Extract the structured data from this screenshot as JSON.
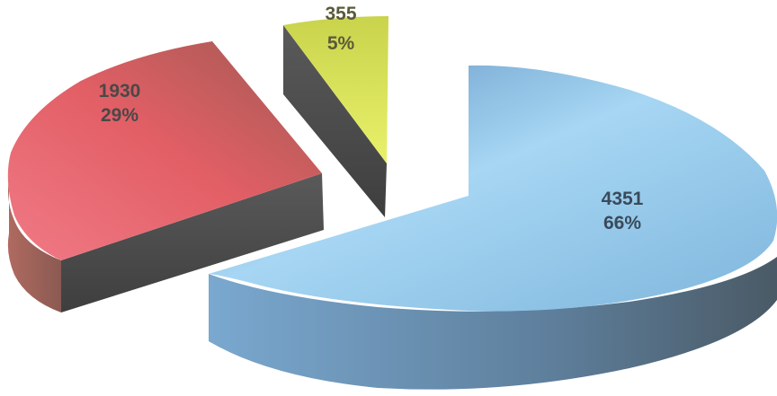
{
  "chart_data": {
    "type": "pie",
    "style": "3d-exploded",
    "title": "",
    "legend": "none",
    "slices": [
      {
        "value": 4351,
        "label": "4351",
        "percent": "66%",
        "color": "#8fc3e6"
      },
      {
        "value": 1930,
        "label": "1930",
        "percent": "29%",
        "color": "#e8626b"
      },
      {
        "value": 355,
        "label": "355",
        "percent": "5%",
        "color": "#d9e45a"
      }
    ]
  }
}
